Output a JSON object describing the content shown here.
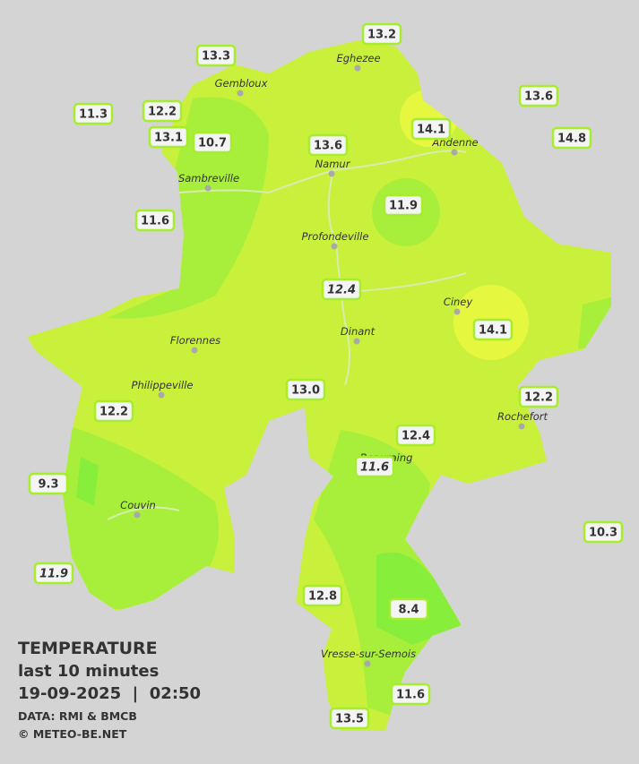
{
  "map": {
    "stations": [
      {
        "label": "13.2"
      },
      {
        "label": "13.3"
      },
      {
        "label": "11.3"
      },
      {
        "label": "12.2"
      },
      {
        "label": "13.1"
      },
      {
        "label": "10.7"
      },
      {
        "label": "13.6"
      },
      {
        "label": "14.1"
      },
      {
        "label": "13.6"
      },
      {
        "label": "14.8"
      },
      {
        "label": "11.9"
      },
      {
        "label": "11.6"
      },
      {
        "label": "12.4",
        "italic": true
      },
      {
        "label": "14.1"
      },
      {
        "label": "13.0"
      },
      {
        "label": "12.2"
      },
      {
        "label": "12.2"
      },
      {
        "label": "12.4"
      },
      {
        "label": "11.6",
        "italic": true
      },
      {
        "label": "9.3"
      },
      {
        "label": "10.3"
      },
      {
        "label": "11.9",
        "italic": true
      },
      {
        "label": "12.8"
      },
      {
        "label": "8.4"
      },
      {
        "label": "11.6"
      },
      {
        "label": "13.5"
      }
    ],
    "cities": [
      "Gembloux",
      "Eghezee",
      "Andenne",
      "Namur",
      "Sambreville",
      "Profondeville",
      "Ciney",
      "Dinant",
      "Florennes",
      "Philippeville",
      "Rochefort",
      "Beauraing",
      "Couvin",
      "Vresse-sur-Semois"
    ],
    "legend": {
      "title": "TEMPERATURE",
      "subtitle": "last 10 minutes",
      "datetime": "19-09-2025  |  02:50",
      "source": "DATA: RMI & BMCB",
      "copyright": "© METEO-BE.NET"
    }
  }
}
